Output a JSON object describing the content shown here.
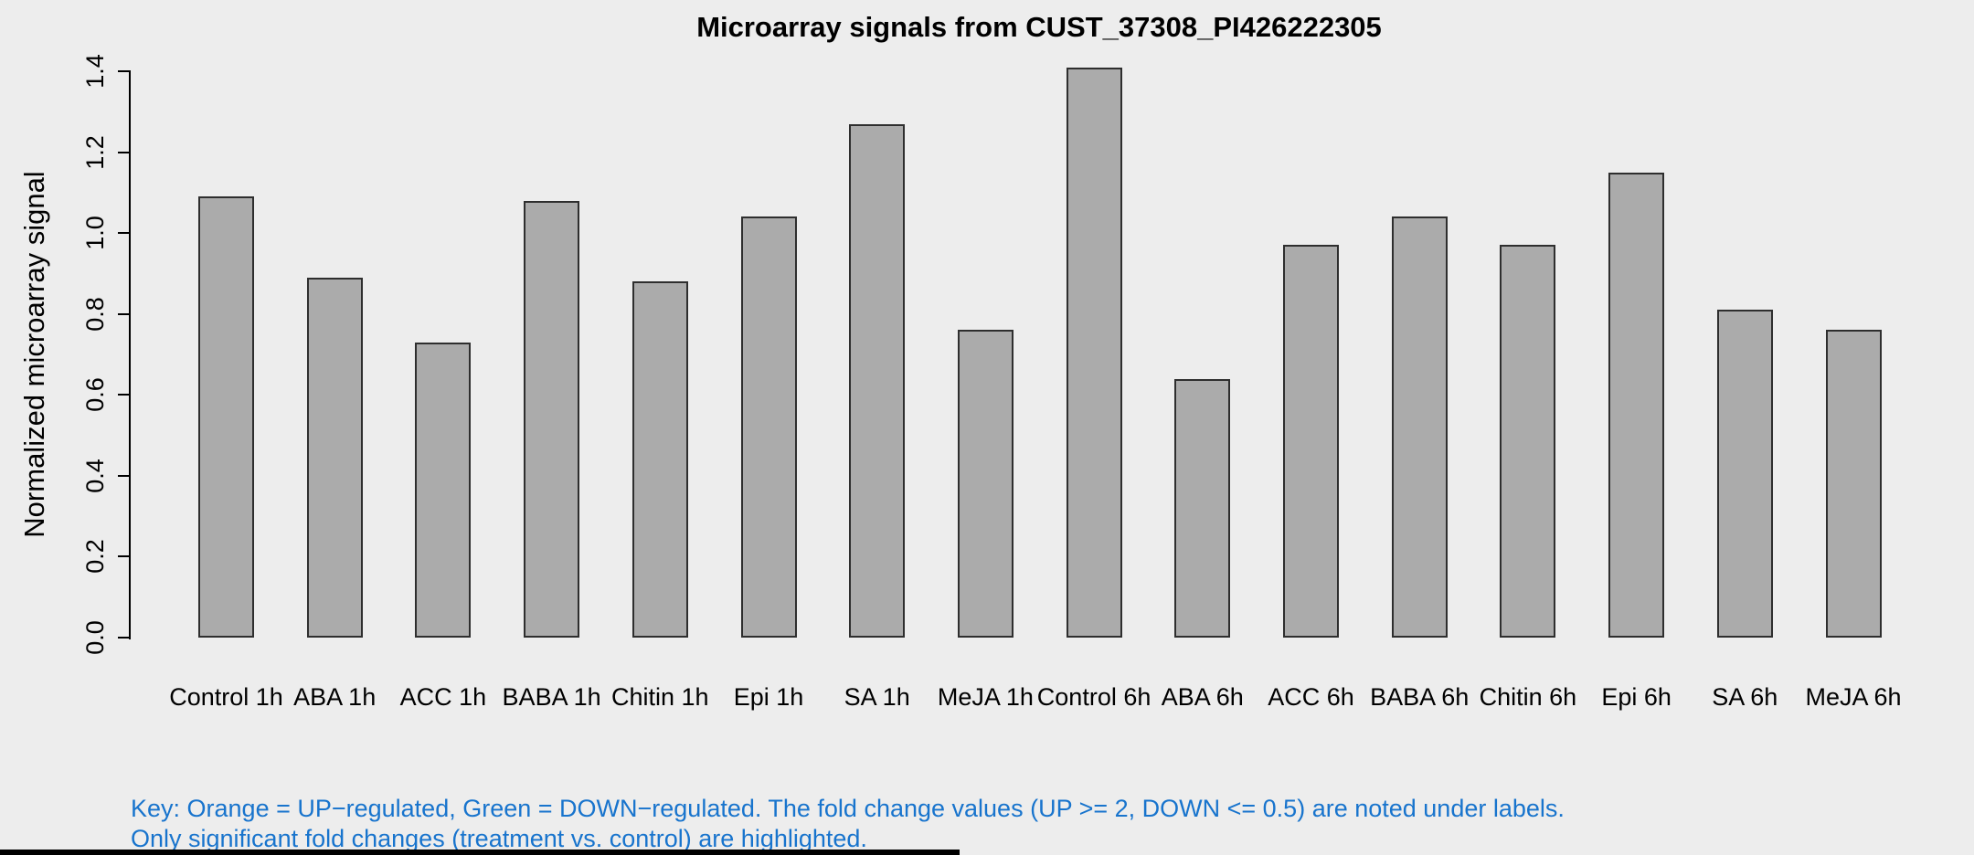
{
  "page": {
    "background": "#EDEDED"
  },
  "chart_data": {
    "type": "bar",
    "title": "Microarray signals from CUST_37308_PI426222305",
    "xlabel": "",
    "ylabel": "Normalized microarray signal",
    "categories": [
      "Control 1h",
      "ABA 1h",
      "ACC 1h",
      "BABA 1h",
      "Chitin 1h",
      "Epi 1h",
      "SA 1h",
      "MeJA 1h",
      "Control 6h",
      "ABA 6h",
      "ACC 6h",
      "BABA 6h",
      "Chitin 6h",
      "Epi 6h",
      "SA 6h",
      "MeJA 6h"
    ],
    "values": [
      1.09,
      0.89,
      0.73,
      1.08,
      0.88,
      1.04,
      1.27,
      0.76,
      1.41,
      0.64,
      0.97,
      1.04,
      0.97,
      1.15,
      0.81,
      0.76
    ],
    "ylim": [
      0,
      1.4
    ],
    "ytick_labels": [
      "0.0",
      "0.2",
      "0.4",
      "0.6",
      "0.8",
      "1.0",
      "1.2",
      "1.4"
    ],
    "grid": false,
    "legend_position": "none",
    "bar_fill_color": "#ABABAB",
    "bar_border_color": "#2E2E2E",
    "axis_color": "#000000"
  },
  "footer": {
    "line1": "Key: Orange = UP−regulated, Green = DOWN−regulated. The fold change values (UP >= 2, DOWN <= 0.5) are noted under labels.",
    "line2": "Only significant fold changes (treatment vs. control) are highlighted.",
    "color": "#1874CD"
  }
}
